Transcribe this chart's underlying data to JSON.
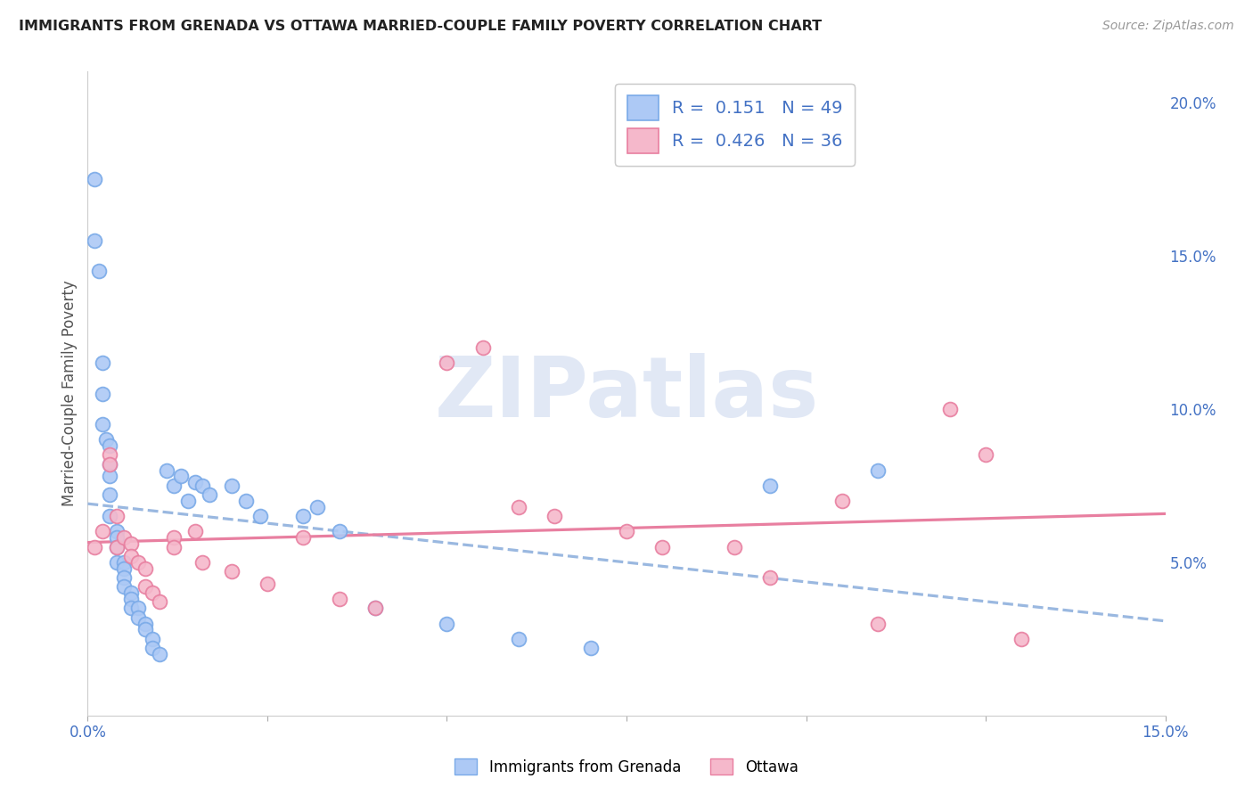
{
  "title": "IMMIGRANTS FROM GRENADA VS OTTAWA MARRIED-COUPLE FAMILY POVERTY CORRELATION CHART",
  "source": "Source: ZipAtlas.com",
  "ylabel": "Married-Couple Family Poverty",
  "legend_label1": "Immigrants from Grenada",
  "legend_label2": "Ottawa",
  "R1": 0.151,
  "N1": 49,
  "R2": 0.426,
  "N2": 36,
  "color_blue_face": "#adc9f5",
  "color_blue_edge": "#7aaae8",
  "color_pink_face": "#f5b8cb",
  "color_pink_edge": "#e87fa0",
  "color_blue_line": "#9ab8e0",
  "color_pink_line": "#e87fa0",
  "watermark": "ZIPatlas",
  "watermark_color": "#cdd9ef",
  "xlim_min": 0.0,
  "xlim_max": 0.15,
  "ylim_min": 0.0,
  "ylim_max": 0.21,
  "x_tick_positions": [
    0.0,
    0.025,
    0.05,
    0.075,
    0.1,
    0.125,
    0.15
  ],
  "y_ticks_right": [
    0.05,
    0.1,
    0.15,
    0.2
  ],
  "y_tick_labels_right": [
    "5.0%",
    "10.0%",
    "15.0%",
    "20.0%"
  ],
  "blue_x": [
    0.001,
    0.001,
    0.0015,
    0.002,
    0.002,
    0.002,
    0.0025,
    0.003,
    0.003,
    0.003,
    0.003,
    0.003,
    0.004,
    0.004,
    0.004,
    0.004,
    0.005,
    0.005,
    0.005,
    0.005,
    0.006,
    0.006,
    0.006,
    0.007,
    0.007,
    0.008,
    0.008,
    0.009,
    0.009,
    0.01,
    0.011,
    0.012,
    0.013,
    0.014,
    0.015,
    0.016,
    0.017,
    0.02,
    0.022,
    0.024,
    0.03,
    0.032,
    0.035,
    0.04,
    0.05,
    0.06,
    0.07,
    0.095,
    0.11
  ],
  "blue_y": [
    0.175,
    0.155,
    0.145,
    0.115,
    0.105,
    0.095,
    0.09,
    0.088,
    0.082,
    0.078,
    0.072,
    0.065,
    0.06,
    0.058,
    0.055,
    0.05,
    0.05,
    0.048,
    0.045,
    0.042,
    0.04,
    0.038,
    0.035,
    0.035,
    0.032,
    0.03,
    0.028,
    0.025,
    0.022,
    0.02,
    0.08,
    0.075,
    0.078,
    0.07,
    0.076,
    0.075,
    0.072,
    0.075,
    0.07,
    0.065,
    0.065,
    0.068,
    0.06,
    0.035,
    0.03,
    0.025,
    0.022,
    0.075,
    0.08
  ],
  "pink_x": [
    0.001,
    0.002,
    0.003,
    0.003,
    0.004,
    0.004,
    0.005,
    0.006,
    0.006,
    0.007,
    0.008,
    0.008,
    0.009,
    0.01,
    0.012,
    0.012,
    0.015,
    0.016,
    0.02,
    0.025,
    0.03,
    0.035,
    0.04,
    0.05,
    0.055,
    0.06,
    0.065,
    0.075,
    0.08,
    0.09,
    0.095,
    0.105,
    0.11,
    0.12,
    0.125,
    0.13
  ],
  "pink_y": [
    0.055,
    0.06,
    0.085,
    0.082,
    0.065,
    0.055,
    0.058,
    0.056,
    0.052,
    0.05,
    0.048,
    0.042,
    0.04,
    0.037,
    0.058,
    0.055,
    0.06,
    0.05,
    0.047,
    0.043,
    0.058,
    0.038,
    0.035,
    0.115,
    0.12,
    0.068,
    0.065,
    0.06,
    0.055,
    0.055,
    0.045,
    0.07,
    0.03,
    0.1,
    0.085,
    0.025
  ]
}
